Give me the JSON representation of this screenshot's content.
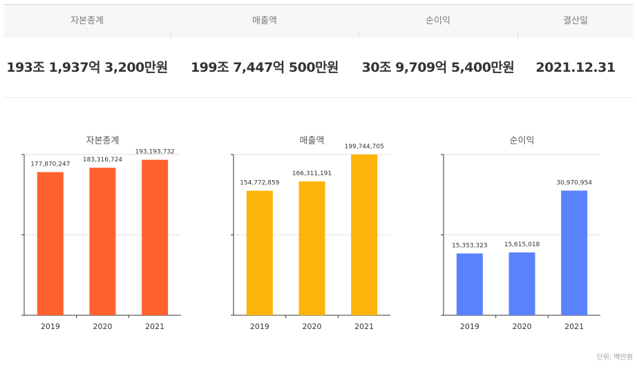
{
  "summary": {
    "headers": [
      "자본총계",
      "매출액",
      "순이익",
      "결산일"
    ],
    "values": [
      "193조 1,937억 3,200만원",
      "199조 7,447억 500만원",
      "30조 9,709억 5,400만원",
      "2021.12.31"
    ]
  },
  "unit_label": "단위: 백만원",
  "chart_data": [
    {
      "type": "bar",
      "title": "자본총계",
      "categories": [
        "2019",
        "2020",
        "2021"
      ],
      "values": [
        177870247,
        183316724,
        193193732
      ],
      "value_labels": [
        "177,870,247",
        "183,316,724",
        "193,193,732"
      ],
      "ylim": [
        0,
        199744705
      ],
      "color": "#ff612d",
      "grid": true
    },
    {
      "type": "bar",
      "title": "매출액",
      "categories": [
        "2019",
        "2020",
        "2021"
      ],
      "values": [
        154772859,
        166311191,
        199744705
      ],
      "value_labels": [
        "154,772,859",
        "166,311,191",
        "199,744,705"
      ],
      "ylim": [
        0,
        199744705
      ],
      "color": "#fcb40b",
      "grid": true
    },
    {
      "type": "bar",
      "title": "순이익",
      "categories": [
        "2019",
        "2020",
        "2021"
      ],
      "values": [
        15353323,
        15615018,
        30970954
      ],
      "value_labels": [
        "15,353,323",
        "15,615,018",
        "30,970,954"
      ],
      "ylim": [
        0,
        39936000
      ],
      "color": "#5b82fd",
      "grid": true
    }
  ]
}
